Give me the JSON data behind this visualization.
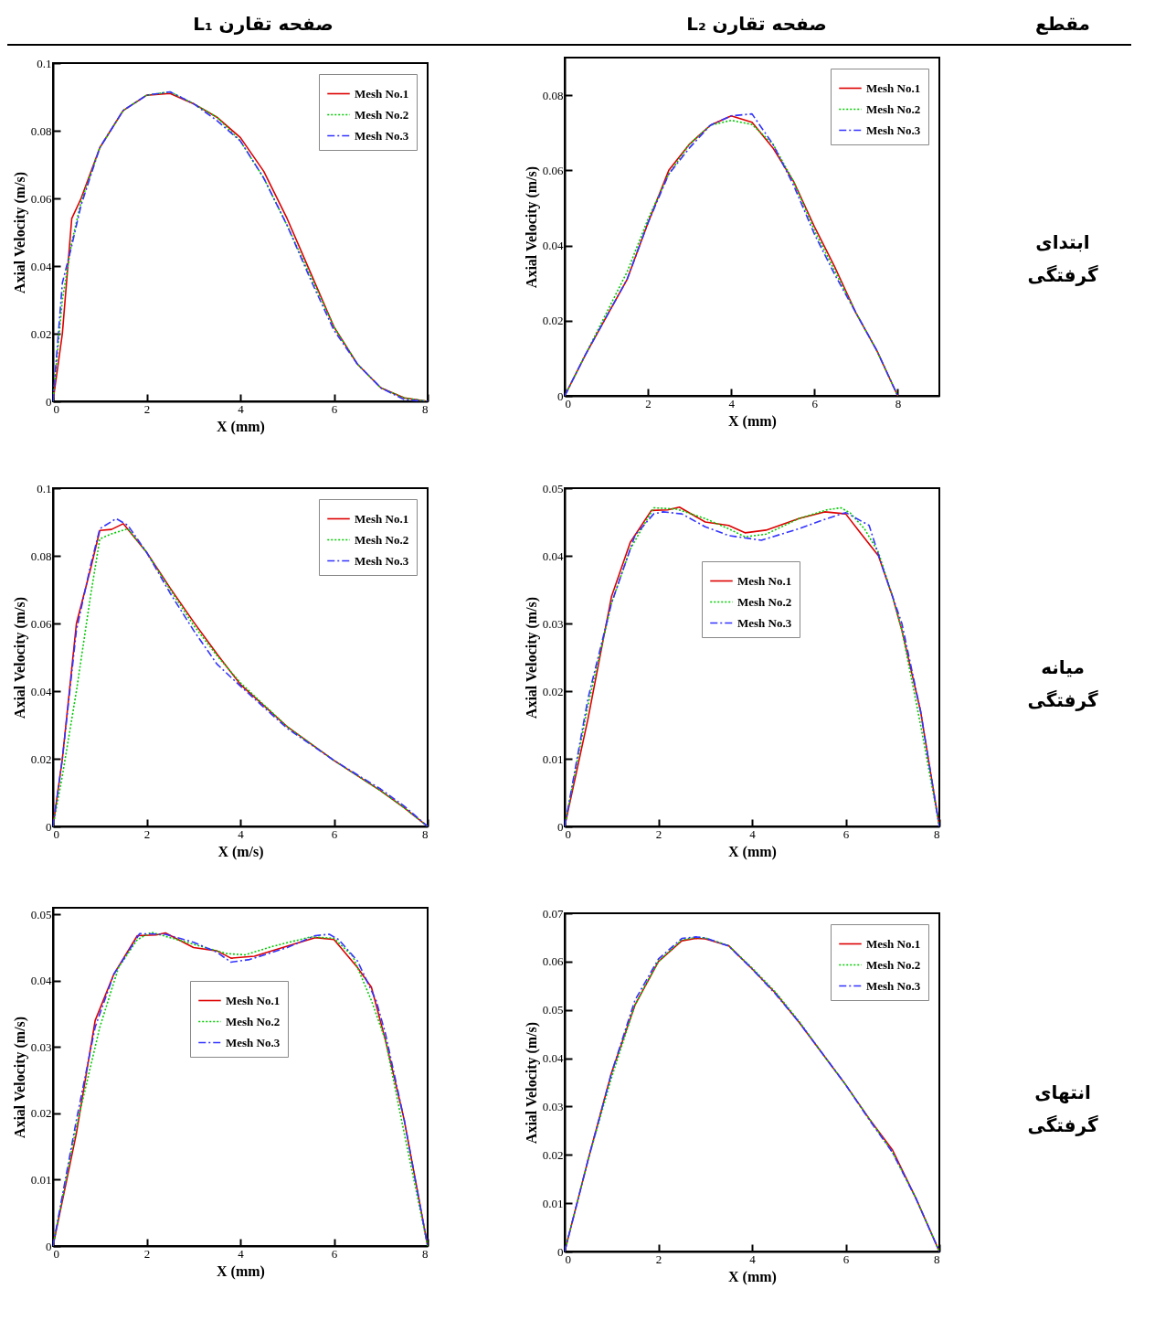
{
  "chart_data": [
    {
      "type": "line",
      "xlabel": "X (mm)",
      "ylabel": "Axial Velocity (m/s)",
      "xlim": [
        0,
        8
      ],
      "ylim": [
        0,
        0.1
      ],
      "xticks": [
        0,
        2,
        4,
        6,
        8
      ],
      "yticks": [
        0,
        0.02,
        0.04,
        0.06,
        0.08,
        0.1
      ],
      "legend": "top right",
      "series": [
        {
          "name": "Mesh No.1",
          "color": "#dd0000",
          "line_style": "solid",
          "x": [
            0,
            0.2,
            0.4,
            0.6,
            1,
            1.5,
            2,
            2.5,
            3,
            3.5,
            4,
            4.5,
            5,
            5.5,
            6,
            6.5,
            7,
            7.5,
            8
          ],
          "values": [
            0,
            0.02,
            0.054,
            0.06,
            0.075,
            0.086,
            0.0905,
            0.091,
            0.088,
            0.084,
            0.078,
            0.068,
            0.054,
            0.038,
            0.022,
            0.011,
            0.004,
            0.001,
            0
          ]
        },
        {
          "name": "Mesh No.2",
          "color": "#00cc00",
          "line_style": "dotted",
          "x": [
            0,
            0.2,
            0.4,
            0.6,
            1,
            1.5,
            2,
            2.5,
            3,
            3.5,
            4,
            4.5,
            5,
            5.5,
            6,
            6.5,
            7,
            7.5,
            8
          ],
          "values": [
            0,
            0.03,
            0.047,
            0.059,
            0.075,
            0.086,
            0.0905,
            0.0915,
            0.088,
            0.084,
            0.077,
            0.066,
            0.052,
            0.037,
            0.022,
            0.011,
            0.004,
            0.001,
            0
          ]
        },
        {
          "name": "Mesh No.3",
          "color": "#3333ff",
          "line_style": "dashed",
          "x": [
            0,
            0.2,
            0.4,
            0.6,
            1,
            1.5,
            2,
            2.5,
            3,
            3.5,
            4,
            4.5,
            5,
            5.5,
            6,
            6.5,
            7,
            7.5,
            8
          ],
          "values": [
            0,
            0.035,
            0.046,
            0.058,
            0.075,
            0.086,
            0.0905,
            0.0915,
            0.088,
            0.083,
            0.077,
            0.066,
            0.052,
            0.036,
            0.021,
            0.011,
            0.004,
            0.0005,
            0
          ]
        }
      ]
    },
    {
      "type": "line",
      "xlabel": "X (mm)",
      "ylabel": "Axial Velocity (m/s)",
      "xlim": [
        0,
        9
      ],
      "ylim": [
        0,
        0.09
      ],
      "xticks": [
        0,
        2,
        4,
        6,
        8
      ],
      "yticks": [
        0,
        0.02,
        0.04,
        0.06,
        0.08
      ],
      "legend": "top right",
      "series": [
        {
          "name": "Mesh No.1",
          "color": "#dd0000",
          "line_style": "solid",
          "x": [
            0,
            0.5,
            1,
            1.5,
            2,
            2.5,
            3,
            3.5,
            4,
            4.5,
            5,
            5.5,
            6,
            6.5,
            7,
            7.5,
            8
          ],
          "values": [
            0,
            0.011,
            0.021,
            0.031,
            0.046,
            0.06,
            0.067,
            0.072,
            0.0745,
            0.0728,
            0.066,
            0.057,
            0.045,
            0.034,
            0.022,
            0.012,
            0
          ]
        },
        {
          "name": "Mesh No.2",
          "color": "#00cc00",
          "line_style": "dotted",
          "x": [
            0,
            0.5,
            1,
            1.5,
            2,
            2.5,
            3,
            3.5,
            4,
            4.5,
            5,
            5.5,
            6,
            6.5,
            7,
            7.5,
            8
          ],
          "values": [
            0,
            0.011,
            0.022,
            0.033,
            0.047,
            0.059,
            0.067,
            0.072,
            0.0733,
            0.0722,
            0.067,
            0.057,
            0.044,
            0.033,
            0.022,
            0.012,
            0
          ]
        },
        {
          "name": "Mesh No.3",
          "color": "#3333ff",
          "line_style": "dashed",
          "x": [
            0,
            0.5,
            1,
            1.5,
            2,
            2.5,
            3,
            3.5,
            4,
            4.5,
            5,
            5.5,
            6,
            6.5,
            7,
            7.5,
            8
          ],
          "values": [
            0,
            0.011,
            0.021,
            0.031,
            0.046,
            0.059,
            0.066,
            0.072,
            0.0745,
            0.075,
            0.067,
            0.056,
            0.043,
            0.032,
            0.022,
            0.012,
            0
          ]
        }
      ]
    },
    {
      "type": "line",
      "xlabel": "X (m/s)",
      "ylabel": "Axial Velocity (m/s)",
      "xlim": [
        0,
        8
      ],
      "ylim": [
        0,
        0.1
      ],
      "xticks": [
        0,
        2,
        4,
        6,
        8
      ],
      "yticks": [
        0,
        0.02,
        0.04,
        0.06,
        0.08,
        0.1
      ],
      "legend": "top right",
      "series": [
        {
          "name": "Mesh No.1",
          "color": "#dd0000",
          "line_style": "solid",
          "x": [
            0,
            0.2,
            0.5,
            0.8,
            1,
            1.25,
            1.5,
            2,
            2.5,
            3,
            3.5,
            4,
            5,
            6,
            7,
            7.5,
            8
          ],
          "values": [
            0,
            0.02,
            0.06,
            0.076,
            0.0875,
            0.0878,
            0.0895,
            0.081,
            0.0705,
            0.0605,
            0.051,
            0.042,
            0.0295,
            0.0195,
            0.0105,
            0.0055,
            0
          ]
        },
        {
          "name": "Mesh No.2",
          "color": "#00cc00",
          "line_style": "dotted",
          "x": [
            0,
            0.2,
            0.5,
            0.8,
            1,
            1.25,
            1.6,
            2,
            2.5,
            3,
            3.5,
            4,
            5,
            6,
            7,
            7.5,
            8
          ],
          "values": [
            0,
            0.015,
            0.04,
            0.068,
            0.085,
            0.0865,
            0.088,
            0.081,
            0.07,
            0.0595,
            0.0505,
            0.0425,
            0.0295,
            0.0195,
            0.0105,
            0.0055,
            0
          ]
        },
        {
          "name": "Mesh No.3",
          "color": "#3333ff",
          "line_style": "dashed",
          "x": [
            0,
            0.2,
            0.5,
            0.8,
            1,
            1.35,
            1.6,
            2,
            2.5,
            3,
            3.5,
            4,
            5,
            6,
            7,
            7.5,
            8
          ],
          "values": [
            0,
            0.02,
            0.058,
            0.077,
            0.088,
            0.091,
            0.089,
            0.081,
            0.069,
            0.058,
            0.048,
            0.0415,
            0.029,
            0.0195,
            0.011,
            0.006,
            0
          ]
        }
      ]
    },
    {
      "type": "line",
      "xlabel": "X (mm)",
      "ylabel": "Axial Velocity (m/s)",
      "xlim": [
        0,
        8
      ],
      "ylim": [
        0,
        0.05
      ],
      "xticks": [
        0,
        2,
        4,
        6,
        8
      ],
      "yticks": [
        0,
        0.01,
        0.02,
        0.03,
        0.04,
        0.05
      ],
      "legend": "top",
      "series": [
        {
          "name": "Mesh No.1",
          "color": "#dd0000",
          "line_style": "solid",
          "x": [
            0,
            0.5,
            1,
            1.4,
            1.85,
            2.2,
            2.45,
            3,
            3.5,
            3.85,
            4.3,
            5,
            5.55,
            6,
            6.3,
            6.7,
            7,
            7.2,
            7.6,
            8
          ],
          "values": [
            0,
            0.016,
            0.034,
            0.042,
            0.0467,
            0.0468,
            0.0472,
            0.045,
            0.0445,
            0.0434,
            0.0438,
            0.0455,
            0.0465,
            0.0462,
            0.0435,
            0.04,
            0.034,
            0.029,
            0.017,
            0
          ]
        },
        {
          "name": "Mesh No.2",
          "color": "#00cc00",
          "line_style": "dotted",
          "x": [
            0,
            0.5,
            1,
            1.4,
            1.9,
            2.4,
            3,
            3.5,
            3.85,
            4.3,
            5,
            5.6,
            5.9,
            6.1,
            6.4,
            6.7,
            7,
            7.2,
            7.6,
            8
          ],
          "values": [
            0,
            0.018,
            0.033,
            0.041,
            0.0471,
            0.0469,
            0.0455,
            0.044,
            0.0428,
            0.0432,
            0.0455,
            0.0468,
            0.0471,
            0.0463,
            0.044,
            0.0405,
            0.034,
            0.029,
            0.015,
            0
          ]
        },
        {
          "name": "Mesh No.3",
          "color": "#3333ff",
          "line_style": "dashed",
          "x": [
            0,
            0.5,
            1,
            1.5,
            1.9,
            2.1,
            2.5,
            3,
            3.5,
            4.2,
            5,
            5.6,
            6,
            6.5,
            6.8,
            7,
            7.2,
            7.6,
            8
          ],
          "values": [
            0,
            0.019,
            0.033,
            0.043,
            0.0462,
            0.0465,
            0.0462,
            0.0443,
            0.043,
            0.0423,
            0.044,
            0.0455,
            0.0464,
            0.0445,
            0.038,
            0.034,
            0.03,
            0.017,
            0
          ]
        }
      ]
    },
    {
      "type": "line",
      "xlabel": "X (mm)",
      "ylabel": "Axial Velocity (m/s)",
      "xlim": [
        0,
        8
      ],
      "ylim": [
        0,
        0.051
      ],
      "xticks": [
        0,
        2,
        4,
        6,
        8
      ],
      "yticks": [
        0,
        0.01,
        0.02,
        0.03,
        0.04,
        0.05
      ],
      "legend": "top",
      "series": [
        {
          "name": "Mesh No.1",
          "color": "#dd0000",
          "line_style": "solid",
          "x": [
            0,
            0.5,
            0.9,
            1.3,
            1.8,
            2.2,
            2.4,
            3,
            3.5,
            3.8,
            4.3,
            5,
            5.6,
            6,
            6.5,
            6.8,
            7.1,
            7.5,
            8
          ],
          "values": [
            0,
            0.017,
            0.034,
            0.041,
            0.0468,
            0.0469,
            0.0472,
            0.045,
            0.0445,
            0.0434,
            0.0437,
            0.0452,
            0.0465,
            0.0462,
            0.042,
            0.039,
            0.031,
            0.019,
            0
          ]
        },
        {
          "name": "Mesh No.2",
          "color": "#00cc00",
          "line_style": "dotted",
          "x": [
            0,
            0.5,
            1,
            1.4,
            1.8,
            2.1,
            2.5,
            3,
            3.7,
            4.1,
            4.7,
            5.5,
            6,
            6.4,
            6.8,
            7.1,
            7.5,
            8
          ],
          "values": [
            0,
            0.018,
            0.033,
            0.042,
            0.0462,
            0.0473,
            0.0465,
            0.0455,
            0.0441,
            0.0439,
            0.0452,
            0.0466,
            0.0464,
            0.0437,
            0.037,
            0.031,
            0.017,
            0
          ]
        },
        {
          "name": "Mesh No.3",
          "color": "#3333ff",
          "line_style": "dashed",
          "x": [
            0,
            0.5,
            0.9,
            1.3,
            1.85,
            2.4,
            3,
            3.5,
            3.8,
            4.2,
            5,
            5.6,
            5.9,
            6.1,
            6.5,
            6.9,
            7.1,
            7.5,
            8
          ],
          "values": [
            0,
            0.019,
            0.033,
            0.041,
            0.0471,
            0.047,
            0.0458,
            0.0443,
            0.0428,
            0.0432,
            0.045,
            0.0468,
            0.047,
            0.0462,
            0.043,
            0.037,
            0.032,
            0.019,
            0
          ]
        }
      ]
    },
    {
      "type": "line",
      "xlabel": "X (mm)",
      "ylabel": "Axial Velocity (m/s)",
      "xlim": [
        0,
        8
      ],
      "ylim": [
        0,
        0.07
      ],
      "xticks": [
        0,
        2,
        4,
        6,
        8
      ],
      "yticks": [
        0,
        0.01,
        0.02,
        0.03,
        0.04,
        0.05,
        0.06,
        0.07
      ],
      "legend": "top right",
      "series": [
        {
          "name": "Mesh No.1",
          "color": "#dd0000",
          "line_style": "solid",
          "x": [
            0,
            0.5,
            1,
            1.5,
            2,
            2.5,
            2.8,
            3,
            3.5,
            4,
            4.5,
            5,
            5.5,
            6,
            6.5,
            7,
            7.5,
            8
          ],
          "values": [
            0,
            0.019,
            0.037,
            0.051,
            0.06,
            0.0643,
            0.0648,
            0.0647,
            0.0633,
            0.0585,
            0.0535,
            0.0475,
            0.041,
            0.0345,
            0.0275,
            0.021,
            0.011,
            0
          ]
        },
        {
          "name": "Mesh No.2",
          "color": "#00cc00",
          "line_style": "dotted",
          "x": [
            0,
            0.5,
            1,
            1.5,
            2,
            2.5,
            2.8,
            3,
            3.5,
            4,
            4.5,
            5,
            5.5,
            6,
            6.5,
            7,
            7.5,
            8
          ],
          "values": [
            0,
            0.019,
            0.036,
            0.051,
            0.06,
            0.0645,
            0.065,
            0.0649,
            0.0633,
            0.0587,
            0.0537,
            0.0477,
            0.041,
            0.0345,
            0.0275,
            0.0205,
            0.011,
            0
          ]
        },
        {
          "name": "Mesh No.3",
          "color": "#3333ff",
          "line_style": "dashed",
          "x": [
            0,
            0.5,
            1,
            1.5,
            2,
            2.5,
            2.8,
            3,
            3.5,
            4,
            4.5,
            5,
            5.5,
            6,
            6.5,
            7,
            7.5,
            8
          ],
          "values": [
            0,
            0.019,
            0.037,
            0.052,
            0.0605,
            0.0648,
            0.0651,
            0.0649,
            0.0632,
            0.0585,
            0.0533,
            0.0475,
            0.041,
            0.0345,
            0.0273,
            0.0205,
            0.011,
            0
          ]
        }
      ]
    },
    {
      "type": "other",
      "annotations": [
        "صفحه تقارن L₁",
        "صفحه تقارن L₂",
        "مقطع",
        "ابتدای گرفتگی",
        "میانه گرفتگی",
        "انتهای گرفتگی"
      ]
    }
  ]
}
